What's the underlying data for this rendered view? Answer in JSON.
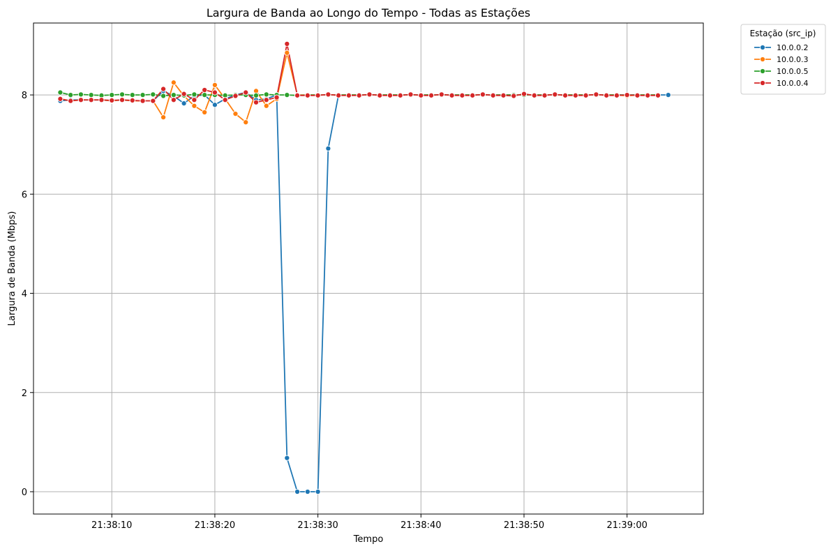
{
  "chart_data": {
    "type": "line",
    "title": "Largura de Banda ao Longo do Tempo - Todas as Estações",
    "xlabel": "Tempo",
    "ylabel": "Largura de Banda (Mbps)",
    "x_range": [
      "21:38:02.4",
      "21:39:07.4"
    ],
    "ylim": [
      -0.45,
      9.45
    ],
    "x_ticks": [
      "21:38:10",
      "21:38:20",
      "21:38:30",
      "21:38:40",
      "21:38:50",
      "21:39:00"
    ],
    "y_ticks": [
      0,
      2,
      4,
      6,
      8
    ],
    "grid": true,
    "legend": {
      "title": "Estação (src_ip)",
      "placement": "outside-top-right"
    },
    "series": [
      {
        "name": "10.0.0.2",
        "color": "#1f77b4",
        "x": [
          "21:38:05",
          "21:38:06",
          "21:38:07",
          "21:38:08",
          "21:38:09",
          "21:38:10",
          "21:38:11",
          "21:38:12",
          "21:38:13",
          "21:38:14",
          "21:38:15",
          "21:38:16",
          "21:38:17",
          "21:38:18",
          "21:38:19",
          "21:38:20",
          "21:38:21",
          "21:38:22",
          "21:38:23",
          "21:38:24",
          "21:38:25",
          "21:38:26",
          "21:38:27",
          "21:38:28",
          "21:38:29",
          "21:38:30",
          "21:38:31",
          "21:38:32",
          "21:38:33",
          "21:38:34",
          "21:38:35",
          "21:38:36",
          "21:38:37",
          "21:38:38",
          "21:38:39",
          "21:38:40",
          "21:38:41",
          "21:38:42",
          "21:38:43",
          "21:38:44",
          "21:38:45",
          "21:38:46",
          "21:38:47",
          "21:38:48",
          "21:38:49",
          "21:38:50",
          "21:38:51",
          "21:38:52",
          "21:38:53",
          "21:38:54",
          "21:38:55",
          "21:38:56",
          "21:38:57",
          "21:38:58",
          "21:38:59",
          "21:39:00",
          "21:39:01",
          "21:39:02",
          "21:39:03",
          "21:39:04"
        ],
        "y": [
          7.88,
          7.9,
          7.9,
          7.9,
          7.9,
          7.88,
          7.9,
          7.88,
          7.88,
          7.88,
          8.08,
          7.98,
          7.83,
          7.98,
          8.0,
          7.8,
          7.92,
          8.0,
          8.05,
          7.9,
          7.92,
          8.0,
          0.68,
          0.0,
          0.0,
          0.0,
          6.92,
          8.0,
          8.0,
          8.0,
          8.0,
          8.0,
          8.0,
          8.0,
          8.0,
          8.0,
          8.0,
          8.0,
          8.0,
          8.0,
          8.0,
          8.0,
          8.0,
          8.0,
          8.0,
          8.0,
          8.0,
          8.0,
          8.0,
          8.0,
          8.0,
          8.0,
          8.0,
          8.0,
          8.0,
          8.0,
          8.0,
          8.0,
          8.0,
          8.0
        ]
      },
      {
        "name": "10.0.0.3",
        "color": "#ff7f0e",
        "x": [
          "21:38:05",
          "21:38:06",
          "21:38:07",
          "21:38:08",
          "21:38:09",
          "21:38:10",
          "21:38:11",
          "21:38:12",
          "21:38:13",
          "21:38:14",
          "21:38:15",
          "21:38:16",
          "21:38:17",
          "21:38:18",
          "21:38:19",
          "21:38:20",
          "21:38:21",
          "21:38:22",
          "21:38:23",
          "21:38:24",
          "21:38:25",
          "21:38:26",
          "21:38:27",
          "21:38:28",
          "21:38:29",
          "21:38:30",
          "21:38:31",
          "21:38:32",
          "21:38:33",
          "21:38:34",
          "21:38:35",
          "21:38:36",
          "21:38:37",
          "21:38:38",
          "21:38:39",
          "21:38:40",
          "21:38:41",
          "21:38:42",
          "21:38:43",
          "21:38:44",
          "21:38:45",
          "21:38:46",
          "21:38:47",
          "21:38:48",
          "21:38:49",
          "21:38:50",
          "21:38:51",
          "21:38:52",
          "21:38:53",
          "21:38:54",
          "21:38:55",
          "21:38:56",
          "21:38:57",
          "21:38:58",
          "21:38:59",
          "21:39:00",
          "21:39:01",
          "21:39:02",
          "21:39:03"
        ],
        "y": [
          7.92,
          7.88,
          7.9,
          7.9,
          7.9,
          7.88,
          7.9,
          7.88,
          7.88,
          7.88,
          7.55,
          8.25,
          7.98,
          7.78,
          7.65,
          8.2,
          7.92,
          7.62,
          7.45,
          8.08,
          7.78,
          7.92,
          8.85,
          8.0,
          8.0,
          8.0,
          8.0,
          8.0,
          8.0,
          8.0,
          8.0,
          8.0,
          8.0,
          8.0,
          8.0,
          8.0,
          8.0,
          8.0,
          8.0,
          8.0,
          8.0,
          8.0,
          8.0,
          8.0,
          8.0,
          8.0,
          8.0,
          8.0,
          8.0,
          8.0,
          8.0,
          8.0,
          8.0,
          8.0,
          8.0,
          7.98,
          8.0,
          8.0,
          8.0
        ]
      },
      {
        "name": "10.0.0.5",
        "color": "#2ca02c",
        "x": [
          "21:38:05",
          "21:38:06",
          "21:38:07",
          "21:38:08",
          "21:38:09",
          "21:38:10",
          "21:38:11",
          "21:38:12",
          "21:38:13",
          "21:38:14",
          "21:38:15",
          "21:38:16",
          "21:38:17",
          "21:38:18",
          "21:38:19",
          "21:38:20",
          "21:38:21",
          "21:38:22",
          "21:38:23",
          "21:38:24",
          "21:38:25",
          "21:38:26",
          "21:38:27",
          "21:38:28",
          "21:38:29",
          "21:38:30",
          "21:38:31",
          "21:38:32",
          "21:38:33",
          "21:38:34",
          "21:38:35",
          "21:38:36",
          "21:38:37",
          "21:38:38",
          "21:38:39",
          "21:38:40",
          "21:38:41",
          "21:38:42",
          "21:38:43",
          "21:38:44",
          "21:38:45",
          "21:38:46",
          "21:38:47",
          "21:38:48",
          "21:38:49",
          "21:38:50",
          "21:38:51",
          "21:38:52",
          "21:38:53",
          "21:38:54",
          "21:38:55",
          "21:38:56",
          "21:38:57",
          "21:38:58",
          "21:38:59",
          "21:39:00",
          "21:39:01",
          "21:39:02",
          "21:39:03"
        ],
        "y": [
          8.05,
          8.0,
          8.01,
          8.0,
          7.99,
          8.0,
          8.01,
          8.0,
          8.0,
          8.01,
          7.98,
          8.0,
          7.99,
          8.01,
          8.0,
          8.0,
          7.99,
          8.0,
          8.0,
          7.99,
          8.01,
          8.0,
          8.0,
          7.99,
          8.0,
          8.0,
          8.0,
          8.0,
          8.0,
          8.0,
          8.0,
          8.0,
          8.0,
          8.0,
          8.0,
          8.0,
          8.0,
          8.0,
          8.0,
          8.0,
          8.0,
          8.0,
          8.0,
          8.0,
          8.0,
          8.0,
          8.0,
          8.0,
          8.0,
          8.0,
          8.0,
          8.0,
          8.0,
          8.0,
          8.0,
          8.0,
          8.0,
          8.0,
          8.0
        ]
      },
      {
        "name": "10.0.0.4",
        "color": "#d62728",
        "x": [
          "21:38:05",
          "21:38:06",
          "21:38:07",
          "21:38:08",
          "21:38:09",
          "21:38:10",
          "21:38:11",
          "21:38:12",
          "21:38:13",
          "21:38:14",
          "21:38:15",
          "21:38:16",
          "21:38:17",
          "21:38:18",
          "21:38:19",
          "21:38:20",
          "21:38:21",
          "21:38:22",
          "21:38:23",
          "21:38:24",
          "21:38:25",
          "21:38:26",
          "21:38:27",
          "21:38:28",
          "21:38:29",
          "21:38:30",
          "21:38:31",
          "21:38:32",
          "21:38:33",
          "21:38:34",
          "21:38:35",
          "21:38:36",
          "21:38:37",
          "21:38:38",
          "21:38:39",
          "21:38:40",
          "21:38:41",
          "21:38:42",
          "21:38:43",
          "21:38:44",
          "21:38:45",
          "21:38:46",
          "21:38:47",
          "21:38:48",
          "21:38:49",
          "21:38:50",
          "21:38:51",
          "21:38:52",
          "21:38:53",
          "21:38:54",
          "21:38:55",
          "21:38:56",
          "21:38:57",
          "21:38:58",
          "21:38:59",
          "21:39:00",
          "21:39:01",
          "21:39:02",
          "21:39:03"
        ],
        "y": [
          7.92,
          7.88,
          7.9,
          7.9,
          7.9,
          7.89,
          7.9,
          7.89,
          7.88,
          7.88,
          8.12,
          7.9,
          8.02,
          7.9,
          8.1,
          8.05,
          7.9,
          7.98,
          8.05,
          7.85,
          7.9,
          7.95,
          9.03,
          7.99,
          7.99,
          7.99,
          8.01,
          7.99,
          7.99,
          7.99,
          8.01,
          7.99,
          7.99,
          7.99,
          8.01,
          7.99,
          7.99,
          8.01,
          7.99,
          7.99,
          7.99,
          8.01,
          7.99,
          7.99,
          7.98,
          8.02,
          7.99,
          7.99,
          8.01,
          7.99,
          7.99,
          7.99,
          8.01,
          7.99,
          7.99,
          8.0,
          7.99,
          7.99,
          7.99
        ]
      }
    ]
  }
}
